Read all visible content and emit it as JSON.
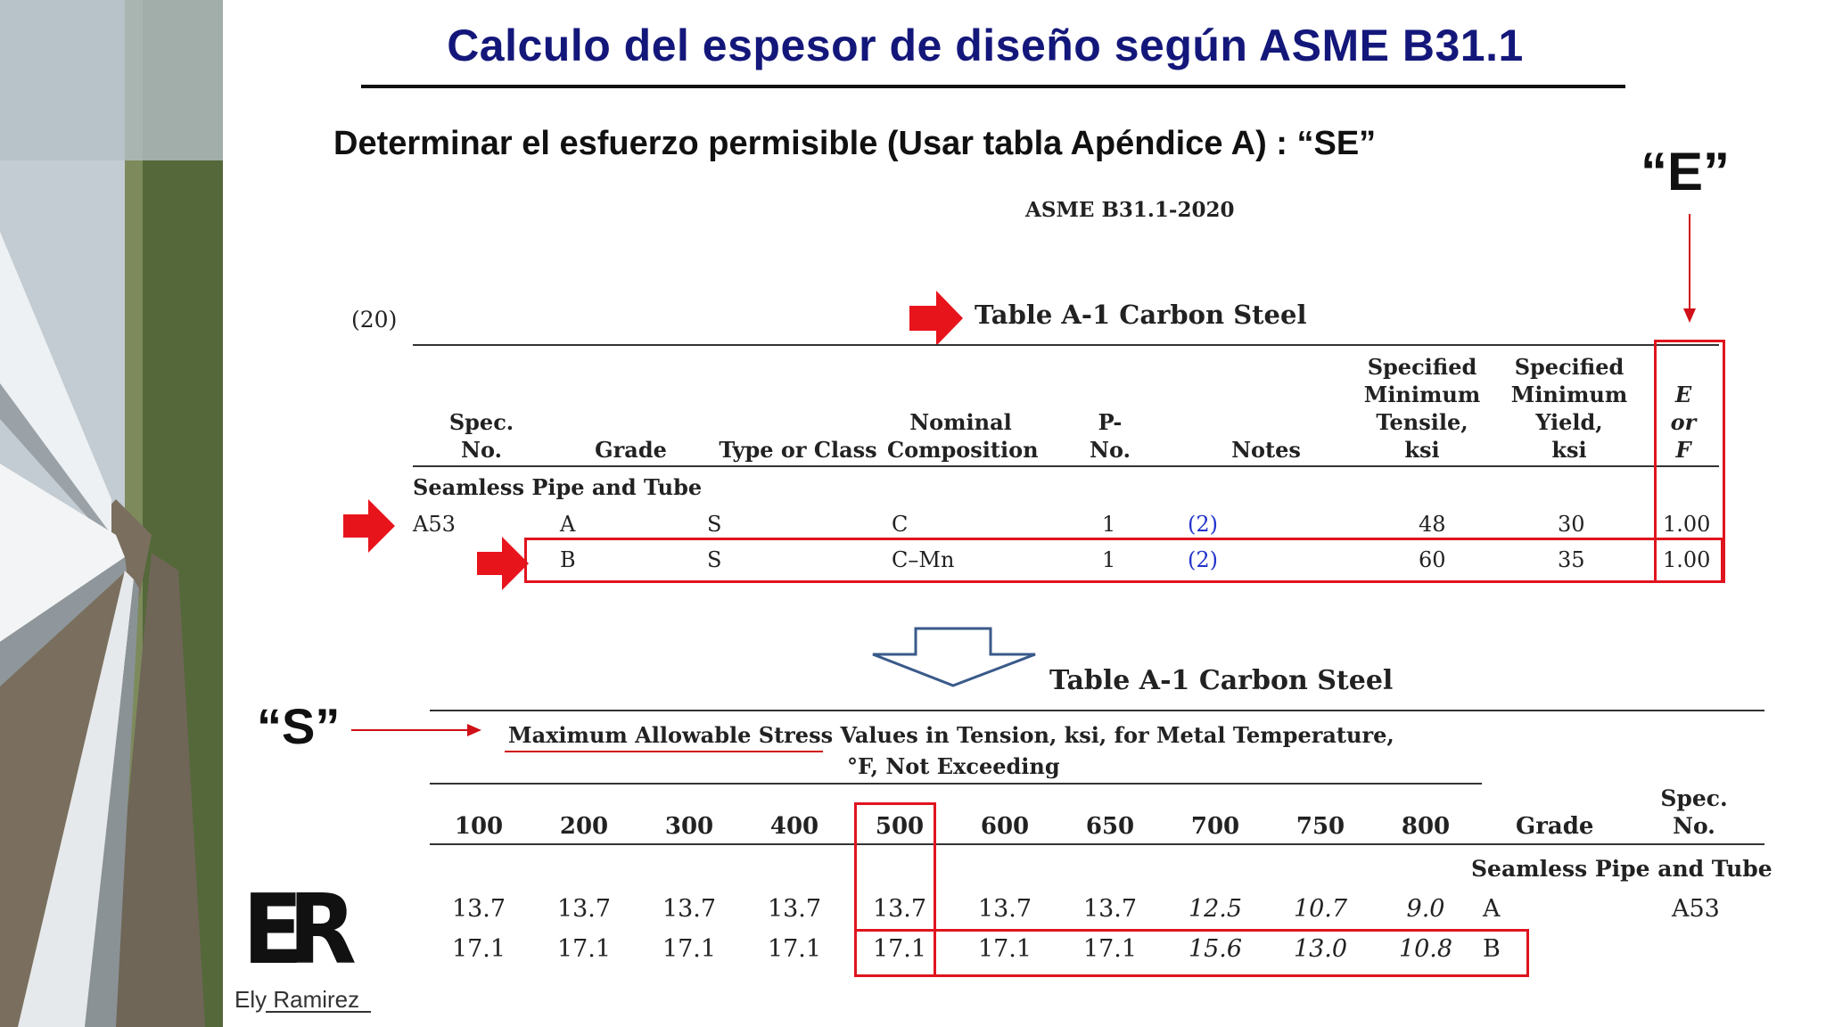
{
  "header": {
    "title": "Calculo del espesor de diseño según ASME B31.1",
    "subtitle": "Determinar el esfuerzo permisible (Usar tabla Apéndice A) : “SE”"
  },
  "labels": {
    "e_quote": "“E”",
    "s_quote": "“S”"
  },
  "table1": {
    "doc_ref": "ASME B31.1-2020",
    "edition": "(20)",
    "title": "Table A-1 Carbon Steel",
    "headers": {
      "spec_l1": "Spec.",
      "spec_l2": "No.",
      "grade": "Grade",
      "type": "Type or Class",
      "nom_l1": "Nominal",
      "nom_l2": "Composition",
      "p_l1": "P-",
      "p_l2": "No.",
      "notes": "Notes",
      "tens_l1": "Specified",
      "tens_l2": "Minimum",
      "tens_l3": "Tensile,",
      "tens_l4": "ksi",
      "yield_l1": "Specified",
      "yield_l2": "Minimum",
      "yield_l3": "Yield,",
      "yield_l4": "ksi",
      "ef_l1": "E",
      "ef_l2": "or",
      "ef_l3": "F"
    },
    "section": "Seamless Pipe and Tube",
    "rows": [
      {
        "spec": "A53",
        "grade": "A",
        "type": "S",
        "comp": "C",
        "p": "1",
        "notes": "(2)",
        "tensile": "48",
        "yield": "30",
        "ef": "1.00"
      },
      {
        "spec": "",
        "grade": "B",
        "type": "S",
        "comp": "C–Mn",
        "p": "1",
        "notes": "(2)",
        "tensile": "60",
        "yield": "35",
        "ef": "1.00"
      }
    ]
  },
  "table2": {
    "title": "Table A-1 Carbon Steel",
    "caption_l1": "Maximum Allowable Stress Values in Tension, ksi, for Metal Temperature,",
    "caption_l2": "°F, Not Exceeding",
    "temps": [
      "100",
      "200",
      "300",
      "400",
      "500",
      "600",
      "650",
      "700",
      "750",
      "800"
    ],
    "grade_hdr": "Grade",
    "spec_l1": "Spec.",
    "spec_l2": "No.",
    "section": "Seamless Pipe and Tube",
    "rows": [
      {
        "values": [
          "13.7",
          "13.7",
          "13.7",
          "13.7",
          "13.7",
          "13.7",
          "13.7",
          "12.5",
          "10.7",
          "9.0"
        ],
        "grade": "A",
        "spec": "A53"
      },
      {
        "values": [
          "17.1",
          "17.1",
          "17.1",
          "17.1",
          "17.1",
          "17.1",
          "17.1",
          "15.6",
          "13.0",
          "10.8"
        ],
        "grade": "B",
        "spec": ""
      }
    ]
  },
  "logo": {
    "monogram": "ER",
    "name": "Ely Ramirez"
  }
}
